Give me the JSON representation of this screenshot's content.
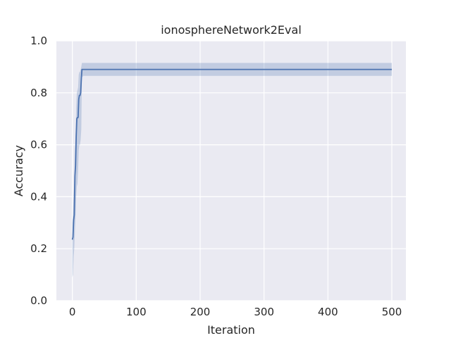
{
  "chart_data": {
    "type": "line",
    "title": "ionosphereNetwork2Eval",
    "xlabel": "Iteration",
    "ylabel": "Accuracy",
    "xlim": [
      -25,
      522
    ],
    "ylim": [
      0.0,
      1.0
    ],
    "xticks": [
      0,
      100,
      200,
      300,
      400,
      500
    ],
    "yticks": [
      0.0,
      0.2,
      0.4,
      0.6,
      0.8,
      1.0
    ],
    "xtick_labels": [
      "0",
      "100",
      "200",
      "300",
      "400",
      "500"
    ],
    "ytick_labels": [
      "0.0",
      "0.2",
      "0.4",
      "0.6",
      "0.8",
      "1.0"
    ],
    "grid": true,
    "background": "#eaeaf2",
    "line_color": "#4c72b0",
    "band_color": "#4c72b0",
    "series": [
      {
        "x": [
          0,
          1,
          2,
          3,
          4,
          5,
          6,
          7,
          8,
          9,
          10,
          11,
          12,
          13,
          14,
          15,
          16,
          17,
          20,
          30,
          50,
          100,
          200,
          300,
          400,
          500
        ],
        "y": [
          0.235,
          0.245,
          0.31,
          0.33,
          0.48,
          0.52,
          0.63,
          0.7,
          0.705,
          0.705,
          0.775,
          0.79,
          0.79,
          0.8,
          0.85,
          0.89,
          0.89,
          0.89,
          0.89,
          0.89,
          0.89,
          0.89,
          0.89,
          0.89,
          0.89,
          0.89
        ],
        "lower": [
          0.09,
          0.1,
          0.17,
          0.2,
          0.27,
          0.32,
          0.4,
          0.44,
          0.45,
          0.5,
          0.58,
          0.6,
          0.6,
          0.62,
          0.66,
          0.87,
          0.86,
          0.865,
          0.865,
          0.865,
          0.865,
          0.865,
          0.865,
          0.865,
          0.865,
          0.865
        ],
        "upper": [
          0.3,
          0.33,
          0.41,
          0.45,
          0.58,
          0.63,
          0.74,
          0.8,
          0.81,
          0.82,
          0.87,
          0.88,
          0.88,
          0.89,
          0.9,
          0.915,
          0.915,
          0.915,
          0.915,
          0.915,
          0.915,
          0.915,
          0.915,
          0.915,
          0.915,
          0.915
        ]
      }
    ]
  }
}
